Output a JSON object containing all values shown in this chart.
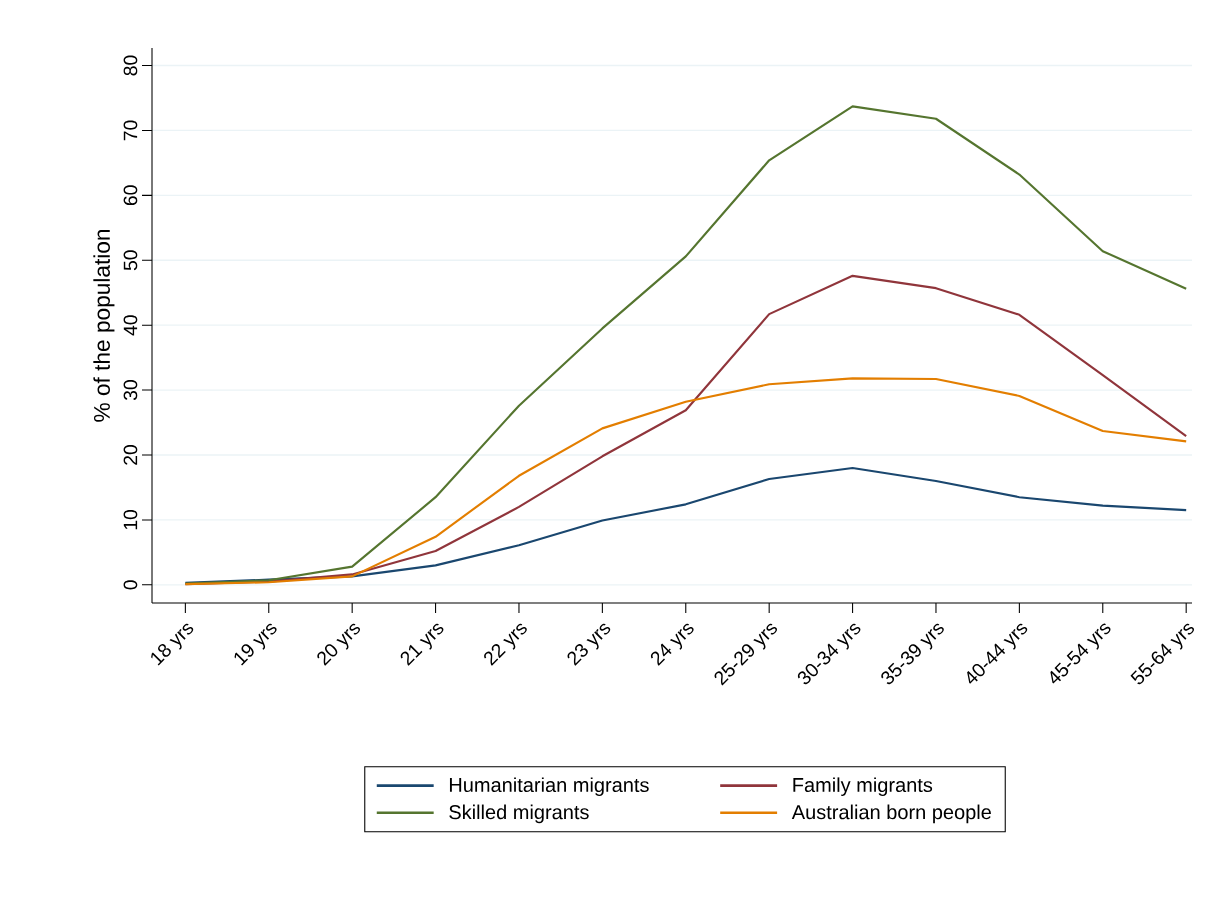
{
  "chart_data": {
    "type": "line",
    "ylabel": "% of the population",
    "categories": [
      "18 yrs",
      "19 yrs",
      "20 yrs",
      "21 yrs",
      "22 yrs",
      "23 yrs",
      "24 yrs",
      "25-29 yrs",
      "30-34 yrs",
      "35-39 yrs",
      "40-44 yrs",
      "45-54 yrs",
      "55-64 yrs"
    ],
    "series": [
      {
        "name": "Humanitarian migrants",
        "color": "#1a476f",
        "values": [
          0.3,
          0.8,
          1.3,
          3.0,
          6.1,
          9.9,
          12.4,
          16.3,
          18.0,
          16.0,
          13.5,
          12.2,
          11.5
        ]
      },
      {
        "name": "Family migrants",
        "color": "#90353b",
        "values": [
          0.1,
          0.5,
          1.6,
          5.2,
          12.0,
          19.8,
          26.9,
          41.7,
          47.6,
          45.7,
          41.6,
          32.3,
          22.9
        ]
      },
      {
        "name": "Skilled migrants",
        "color": "#55752f",
        "values": [
          0.2,
          0.7,
          2.8,
          13.5,
          27.6,
          39.5,
          50.6,
          65.4,
          73.7,
          71.8,
          63.2,
          51.4,
          45.6
        ]
      },
      {
        "name": "Australian born people",
        "color": "#e37e00",
        "values": [
          0.1,
          0.4,
          1.3,
          7.4,
          16.8,
          24.1,
          28.2,
          30.9,
          31.8,
          31.7,
          29.1,
          23.7,
          22.1
        ]
      }
    ],
    "ylim": [
      -2.8,
      82.7
    ],
    "yticks": [
      0,
      10,
      20,
      30,
      40,
      50,
      60,
      70,
      80
    ],
    "grid": "y",
    "legend": "bottom",
    "marker": "none",
    "line_style": "solid"
  }
}
